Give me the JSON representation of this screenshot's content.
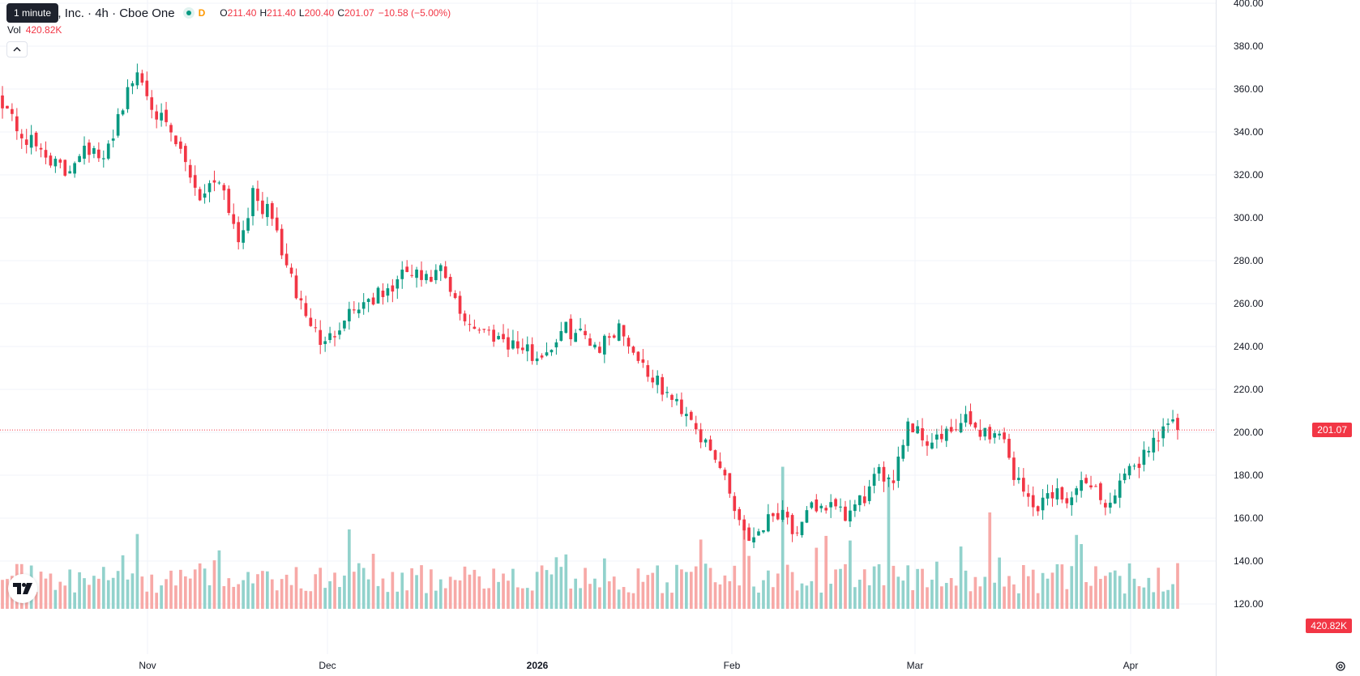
{
  "legend": {
    "symbol_title": "se Global, Inc. · 4h · Cboe One",
    "interval_badge": "D",
    "open_key": "O",
    "open_val": "211.40",
    "high_key": "H",
    "high_val": "211.40",
    "low_key": "L",
    "low_val": "200.40",
    "close_key": "C",
    "close_val": "201.07",
    "change": "−10.58 (−5.00%)"
  },
  "tooltip": {
    "text": "1 minute"
  },
  "volume_legend": {
    "key": "Vol",
    "value": "420.82K"
  },
  "price_tag": "201.07",
  "volume_tag": "420.82K",
  "colors": {
    "up": "#089981",
    "down": "#f23645",
    "up_vol": "#92d2cc",
    "down_vol": "#f7a9a7",
    "grid": "#f0f3fa"
  },
  "icons": {
    "logo": "tradingview-logo-icon",
    "settings": "gear-icon",
    "collapse": "chevron-up-icon"
  },
  "chart_data": {
    "type": "candlestick",
    "y_ticks": [
      "400.00",
      "380.00",
      "360.00",
      "340.00",
      "320.00",
      "300.00",
      "280.00",
      "260.00",
      "240.00",
      "220.00",
      "200.00",
      "180.00",
      "160.00",
      "140.00",
      "120.00"
    ],
    "x_ticks": [
      {
        "label": "Nov",
        "bold": false
      },
      {
        "label": "Dec",
        "bold": false
      },
      {
        "label": "2026",
        "bold": true
      },
      {
        "label": "Feb",
        "bold": false
      },
      {
        "label": "Mar",
        "bold": false
      },
      {
        "label": "Apr",
        "bold": false
      }
    ],
    "ylim": [
      114,
      400
    ],
    "last_price": 201.07,
    "close_anchors": [
      [
        0,
        355
      ],
      [
        4,
        338
      ],
      [
        9,
        330
      ],
      [
        13,
        320
      ],
      [
        17,
        335
      ],
      [
        21,
        325
      ],
      [
        24,
        348
      ],
      [
        28,
        368
      ],
      [
        33,
        345
      ],
      [
        37,
        330
      ],
      [
        41,
        310
      ],
      [
        45,
        320
      ],
      [
        49,
        290
      ],
      [
        52,
        310
      ],
      [
        56,
        300
      ],
      [
        60,
        270
      ],
      [
        64,
        250
      ],
      [
        67,
        240
      ],
      [
        71,
        255
      ],
      [
        76,
        262
      ],
      [
        80,
        265
      ],
      [
        84,
        275
      ],
      [
        88,
        270
      ],
      [
        91,
        275
      ],
      [
        95,
        255
      ],
      [
        99,
        248
      ],
      [
        103,
        245
      ],
      [
        107,
        240
      ],
      [
        111,
        235
      ],
      [
        113,
        238
      ],
      [
        117,
        248
      ],
      [
        121,
        245
      ],
      [
        124,
        240
      ],
      [
        128,
        250
      ],
      [
        131,
        238
      ],
      [
        135,
        225
      ],
      [
        139,
        215
      ],
      [
        143,
        208
      ],
      [
        146,
        193
      ],
      [
        150,
        180
      ],
      [
        152,
        165
      ],
      [
        155,
        150
      ],
      [
        159,
        160
      ],
      [
        162,
        165
      ],
      [
        165,
        150
      ],
      [
        168,
        165
      ],
      [
        171,
        166
      ],
      [
        175,
        160
      ],
      [
        179,
        170
      ],
      [
        182,
        180
      ],
      [
        185,
        180
      ],
      [
        188,
        205
      ],
      [
        192,
        196
      ],
      [
        196,
        198
      ],
      [
        200,
        205
      ],
      [
        204,
        200
      ],
      [
        208,
        198
      ],
      [
        210,
        180
      ],
      [
        214,
        165
      ],
      [
        218,
        172
      ],
      [
        222,
        170
      ],
      [
        226,
        178
      ],
      [
        229,
        165
      ],
      [
        233,
        178
      ],
      [
        237,
        190
      ],
      [
        241,
        203
      ],
      [
        244,
        203
      ]
    ],
    "volume_ylim": [
      0,
      600000
    ]
  }
}
